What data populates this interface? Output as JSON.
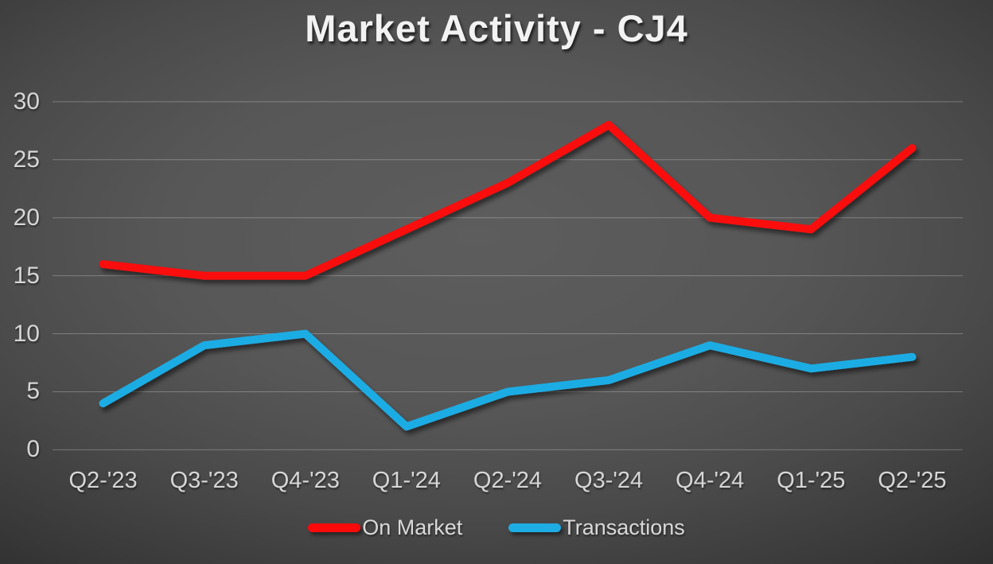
{
  "title": "Market Activity - CJ4",
  "chart_data": {
    "type": "line",
    "title": "Market Activity - CJ4",
    "categories": [
      "Q2-'23",
      "Q3-'23",
      "Q4-'23",
      "Q1-'24",
      "Q2-'24",
      "Q3-'24",
      "Q4-'24",
      "Q1-'25",
      "Q2-'25"
    ],
    "series": [
      {
        "name": "On Market",
        "color": "#FA0A0A",
        "values": [
          16,
          15,
          15,
          19,
          23,
          28,
          20,
          19,
          26
        ]
      },
      {
        "name": "Transactions",
        "color": "#1EACE4",
        "values": [
          4,
          9,
          10,
          2,
          5,
          6,
          9,
          7,
          8
        ]
      }
    ],
    "ylim": [
      0,
      30
    ],
    "y_ticks": [
      0,
      5,
      10,
      15,
      20,
      25,
      30
    ],
    "grid": "horizontal",
    "legend_position": "bottom",
    "background_color": "#4a4a4a",
    "text_color": "#d6d6d6"
  }
}
